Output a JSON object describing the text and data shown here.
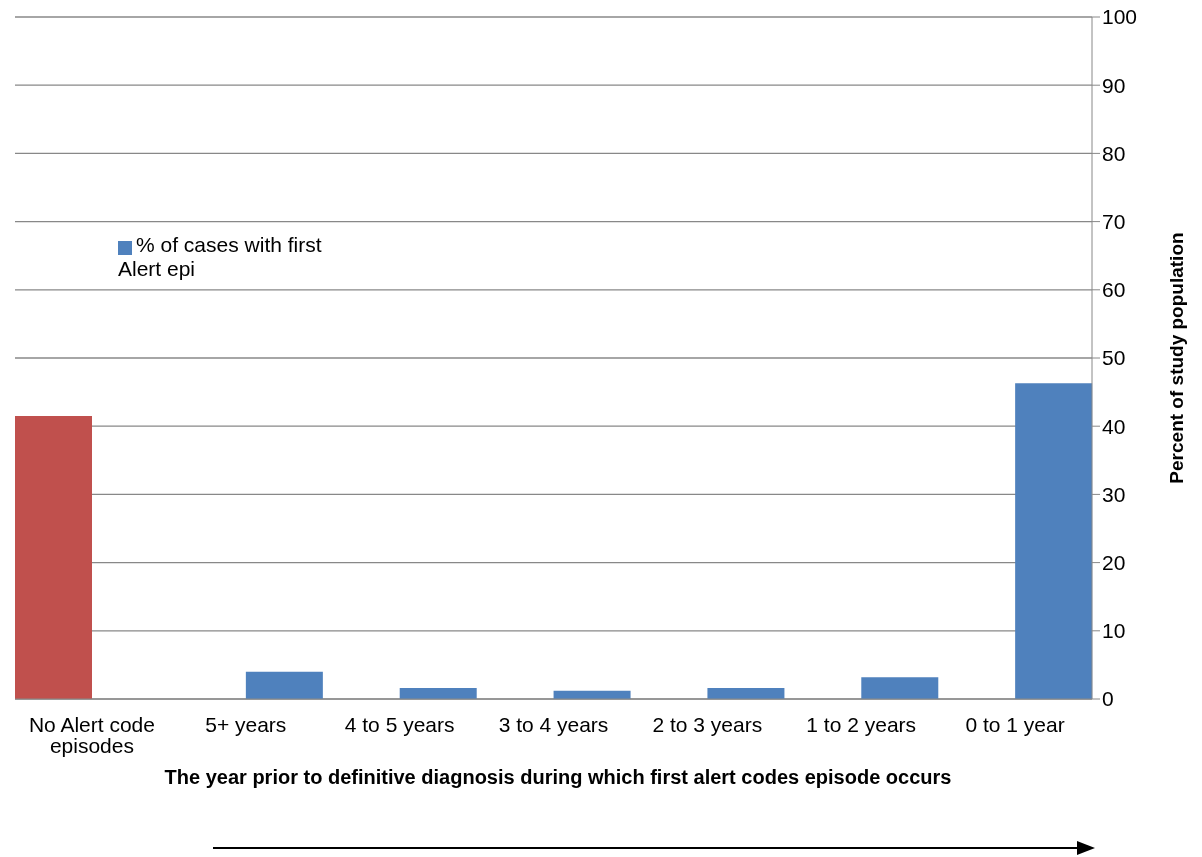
{
  "chart_data": {
    "type": "bar",
    "xlabel": "The year prior to definitive diagnosis during which first alert codes episode occurs",
    "ylabel": "Percent of study population",
    "categories": [
      "No Alert code episodes",
      "5+ years",
      "4 to 5 years",
      "3 to 4 years",
      "2 to 3 years",
      "1 to 2 years",
      "0 to 1 year"
    ],
    "series": [
      {
        "color": "#c0504d",
        "values": [
          41.5,
          null,
          null,
          null,
          null,
          null,
          null
        ]
      },
      {
        "name": "% of cases with first Alert epi",
        "color": "#4f81bd",
        "values": [
          null,
          4.0,
          1.6,
          1.2,
          1.6,
          3.2,
          46.3
        ]
      }
    ],
    "ylim": [
      0,
      100
    ],
    "yticks": [
      0,
      10,
      20,
      30,
      40,
      50,
      60,
      70,
      80,
      90,
      100
    ],
    "grid": "y",
    "legend": "top left"
  }
}
